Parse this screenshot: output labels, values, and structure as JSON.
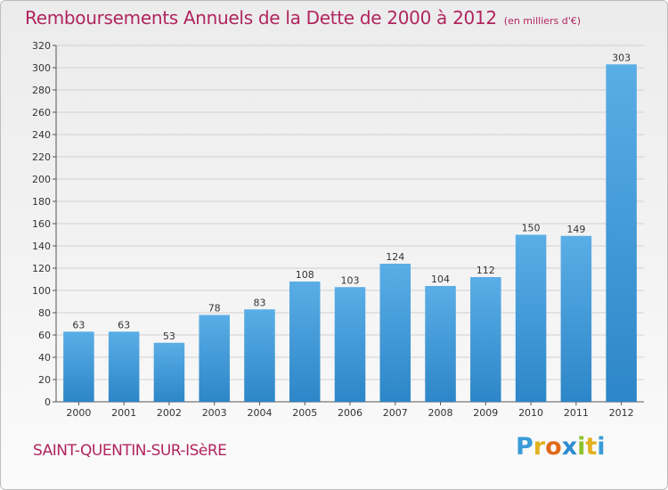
{
  "title": "Remboursements Annuels de la Dette de 2000 à 2012",
  "subtitle": "(en milliers d'€)",
  "city": "SAINT-QUENTIN-SUR-ISèRE",
  "logo": {
    "text": "Proxiti",
    "letters": [
      {
        "char": "P",
        "color": "#3a9bd8"
      },
      {
        "char": "r",
        "color": "#e3b11f"
      },
      {
        "char": "o",
        "color": "#e06a1c"
      },
      {
        "char": "x",
        "color": "#2e8bd0"
      },
      {
        "char": "i",
        "color": "#8bc12b"
      },
      {
        "char": "t",
        "color": "#e3b11f"
      },
      {
        "char": "i",
        "color": "#3a9bd8"
      }
    ]
  },
  "colors": {
    "title": "#b0255e",
    "bar_top": "#5aaee6",
    "bar_bottom": "#2d86c8",
    "grid": "#d0d0d0"
  },
  "chart_data": {
    "type": "bar",
    "categories": [
      "2000",
      "2001",
      "2002",
      "2003",
      "2004",
      "2005",
      "2006",
      "2007",
      "2008",
      "2009",
      "2010",
      "2011",
      "2012"
    ],
    "values": [
      63,
      63,
      53,
      78,
      83,
      108,
      103,
      124,
      104,
      112,
      150,
      149,
      303
    ],
    "title": "Remboursements Annuels de la Dette de 2000 à 2012",
    "subtitle": "(en milliers d'€)",
    "ylim": [
      0,
      320
    ],
    "yticks": [
      0,
      20,
      40,
      60,
      80,
      100,
      120,
      140,
      160,
      180,
      200,
      220,
      240,
      260,
      280,
      300,
      320
    ],
    "grid": true,
    "data_labels": true
  }
}
